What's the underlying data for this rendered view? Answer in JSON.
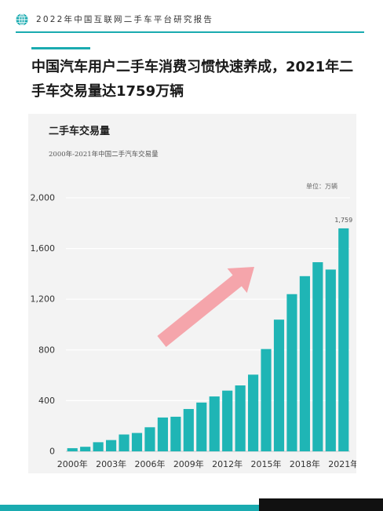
{
  "header": {
    "text": "2022年中国互联网二手车平台研究报告",
    "icon": "globe-icon"
  },
  "title": "中国汽车用户二手车消费习惯快速养成，2021年二手车交易量达1759万辆",
  "chart_data": {
    "type": "bar",
    "title": "二手车交易量",
    "subtitle": "2000年-2021年中国二手汽车交易量",
    "unit_label": "单位：万辆",
    "categories": [
      "2000年",
      "2001年",
      "2002年",
      "2003年",
      "2004年",
      "2005年",
      "2006年",
      "2007年",
      "2008年",
      "2009年",
      "2010年",
      "2011年",
      "2012年",
      "2013年",
      "2014年",
      "2015年",
      "2016年",
      "2017年",
      "2018年",
      "2019年",
      "2020年",
      "2021年"
    ],
    "x_tick_labels": [
      "2000年",
      "2003年",
      "2006年",
      "2009年",
      "2012年",
      "2015年",
      "2018年",
      "2021年"
    ],
    "values": [
      25,
      36,
      72,
      89,
      133,
      145,
      190,
      267,
      273,
      334,
      385,
      433,
      479,
      520,
      605,
      807,
      1039,
      1240,
      1382,
      1492,
      1434,
      1759
    ],
    "data_labels": {
      "2021年": "1,759"
    },
    "y_ticks": [
      "0",
      "400",
      "800",
      "1,200",
      "1,600",
      "2,000"
    ],
    "ylim": [
      0,
      2000
    ],
    "grid": true,
    "colors": {
      "bar": "#1fb5b5",
      "arrow": "#f4a0a6",
      "accent": "#1aabb0"
    }
  }
}
